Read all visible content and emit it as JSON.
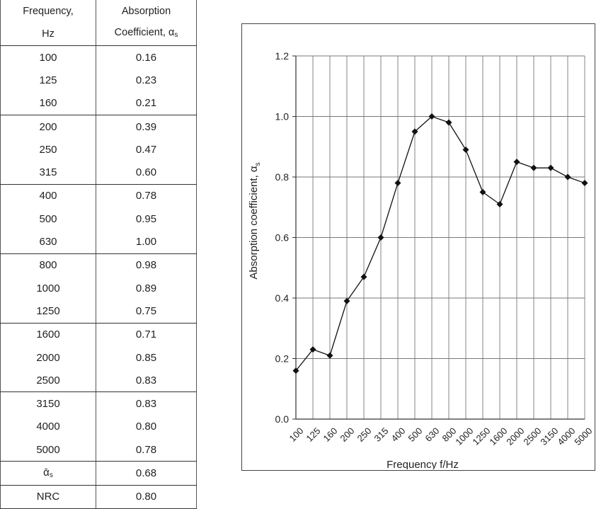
{
  "table": {
    "header": {
      "col1_line1": "Frequency,",
      "col1_line2": "Hz",
      "col2_line1": "Absorption",
      "col2_line2": "Coefficient, α",
      "col2_line2_sub": "s"
    },
    "rows": [
      {
        "freq": "100",
        "coef": "0.16"
      },
      {
        "freq": "125",
        "coef": "0.23"
      },
      {
        "freq": "160",
        "coef": "0.21"
      },
      {
        "freq": "200",
        "coef": "0.39"
      },
      {
        "freq": "250",
        "coef": "0.47"
      },
      {
        "freq": "315",
        "coef": "0.60"
      },
      {
        "freq": "400",
        "coef": "0.78"
      },
      {
        "freq": "500",
        "coef": "0.95"
      },
      {
        "freq": "630",
        "coef": "1.00"
      },
      {
        "freq": "800",
        "coef": "0.98"
      },
      {
        "freq": "1000",
        "coef": "0.89"
      },
      {
        "freq": "1250",
        "coef": "0.75"
      },
      {
        "freq": "1600",
        "coef": "0.71"
      },
      {
        "freq": "2000",
        "coef": "0.85"
      },
      {
        "freq": "2500",
        "coef": "0.83"
      },
      {
        "freq": "3150",
        "coef": "0.83"
      },
      {
        "freq": "4000",
        "coef": "0.80"
      },
      {
        "freq": "5000",
        "coef": "0.78"
      }
    ],
    "summary": [
      {
        "label": "ᾱ",
        "label_sub": "s",
        "value": "0.68"
      },
      {
        "label": "NRC",
        "label_sub": "",
        "value": "0.80"
      }
    ]
  },
  "chart_data": {
    "type": "line",
    "categories": [
      "100",
      "125",
      "160",
      "200",
      "250",
      "315",
      "400",
      "500",
      "630",
      "800",
      "1000",
      "1250",
      "1600",
      "2000",
      "2500",
      "3150",
      "4000",
      "5000"
    ],
    "series": [
      {
        "values": [
          0.16,
          0.23,
          0.21,
          0.39,
          0.47,
          0.6,
          0.78,
          0.95,
          1.0,
          0.98,
          0.89,
          0.75,
          0.71,
          0.85,
          0.83,
          0.83,
          0.8,
          0.78
        ]
      }
    ],
    "xlabel": "Frequency f/Hz",
    "ylabel": "Absorption coefficient, α",
    "ylabel_sub": "s",
    "ylim": [
      0.0,
      1.2
    ],
    "yticks": [
      "0.0",
      "0.2",
      "0.4",
      "0.6",
      "0.8",
      "1.0",
      "1.2"
    ],
    "grid": true,
    "legend": "none",
    "line_color": "#111111"
  }
}
